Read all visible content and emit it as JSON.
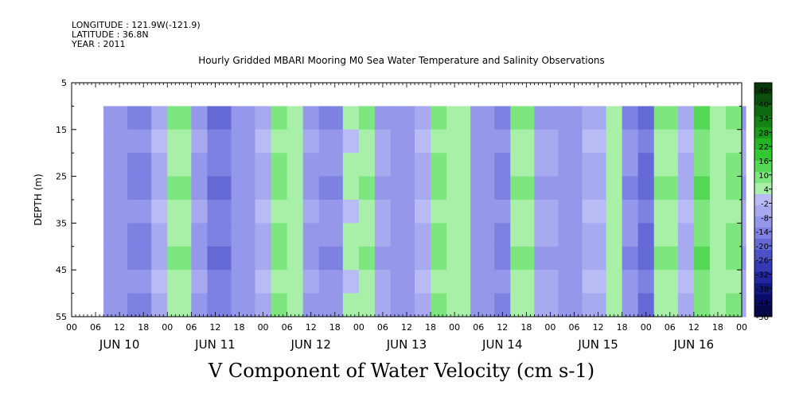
{
  "header": {
    "longitude": "LONGITUDE : 121.9W(-121.9)",
    "latitude": "LATITUDE : 36.8N",
    "year": "YEAR : 2011"
  },
  "chart_data": {
    "type": "heatmap",
    "title": "Hourly Gridded MBARI Mooring M0 Sea Water Temperature and Salinity Observations",
    "variable_label": "V Component of Water Velocity (cm s-1)",
    "ylabel": "DEPTH (m)",
    "y_ticks": [
      5,
      15,
      25,
      35,
      45,
      55
    ],
    "y_range": [
      5,
      55
    ],
    "y_inverted": true,
    "data_depth_range": [
      10,
      55
    ],
    "x_hour_ticks": [
      "00",
      "06",
      "12",
      "18",
      "00",
      "06",
      "12",
      "18",
      "00",
      "06",
      "12",
      "18",
      "00",
      "06",
      "12",
      "18",
      "00",
      "06",
      "12",
      "18",
      "00",
      "06",
      "12",
      "18",
      "00",
      "06",
      "12",
      "18",
      "00"
    ],
    "x_day_labels": [
      "JUN 10",
      "JUN 11",
      "JUN 12",
      "JUN 13",
      "JUN 14",
      "JUN 15",
      "JUN 16"
    ],
    "x_range_days": [
      0,
      7
    ],
    "data_start_hour": 8,
    "data_end_hour": 168,
    "colorbar_ticks": [
      46,
      40,
      34,
      28,
      22,
      16,
      10,
      4,
      -2,
      -8,
      -14,
      -20,
      -26,
      -32,
      -38,
      -44,
      -50
    ],
    "colorbar_range": [
      -50,
      49
    ],
    "colorbar_colors": [
      "#073807",
      "#0a500a",
      "#0f6a0f",
      "#148414",
      "#1a9c1a",
      "#24b424",
      "#33c833",
      "#55d855",
      "#7ee67e",
      "#a8f0a8",
      "#b9bbf4",
      "#a8aaf0",
      "#9497ea",
      "#7d81e2",
      "#6569d6",
      "#4c51c8",
      "#3539b6",
      "#21259e",
      "#121683",
      "#090c66",
      "#050848"
    ],
    "dominant_pattern": "alternating vertical bands of weak negative (lavender) and weak positive (light green) velocity, values mostly between -20 and 20",
    "columns": [
      {
        "t_hours": 8,
        "v": -10
      },
      {
        "t_hours": 14,
        "v": -14
      },
      {
        "t_hours": 20,
        "v": -4
      },
      {
        "t_hours": 24,
        "v": 6
      },
      {
        "t_hours": 30,
        "v": -8
      },
      {
        "t_hours": 34,
        "v": -16
      },
      {
        "t_hours": 40,
        "v": -10
      },
      {
        "t_hours": 46,
        "v": -4
      },
      {
        "t_hours": 50,
        "v": 8
      },
      {
        "t_hours": 54,
        "v": 4
      },
      {
        "t_hours": 58,
        "v": -8
      },
      {
        "t_hours": 62,
        "v": -12
      },
      {
        "t_hours": 68,
        "v": 2
      },
      {
        "t_hours": 72,
        "v": 6
      },
      {
        "t_hours": 76,
        "v": -6
      },
      {
        "t_hours": 80,
        "v": -10
      },
      {
        "t_hours": 86,
        "v": -4
      },
      {
        "t_hours": 90,
        "v": 8
      },
      {
        "t_hours": 94,
        "v": 4
      },
      {
        "t_hours": 100,
        "v": -10
      },
      {
        "t_hours": 106,
        "v": -14
      },
      {
        "t_hours": 110,
        "v": 6
      },
      {
        "t_hours": 116,
        "v": -6
      },
      {
        "t_hours": 122,
        "v": -10
      },
      {
        "t_hours": 128,
        "v": -4
      },
      {
        "t_hours": 134,
        "v": 4
      },
      {
        "t_hours": 138,
        "v": -12
      },
      {
        "t_hours": 142,
        "v": -18
      },
      {
        "t_hours": 146,
        "v": 6
      },
      {
        "t_hours": 152,
        "v": -4
      },
      {
        "t_hours": 156,
        "v": 10
      },
      {
        "t_hours": 160,
        "v": 4
      },
      {
        "t_hours": 164,
        "v": 8
      },
      {
        "t_hours": 168,
        "v": -6
      }
    ]
  }
}
